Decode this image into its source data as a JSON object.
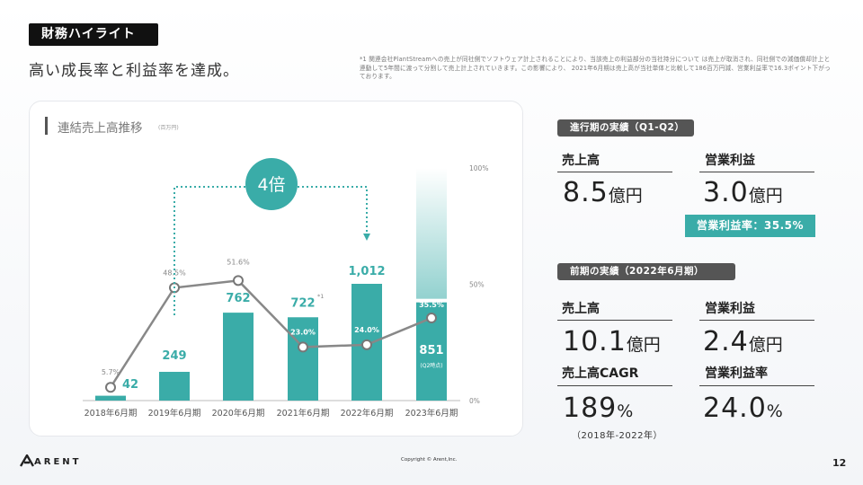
{
  "header": {
    "tag": "財務ハイライト",
    "headline": "高い成長率と利益率を達成。",
    "footnote": "*1 関連会社PlantStreamへの売上が同社側でソフトウェア計上されることにより、当該売上の利益部分の当社持分について は売上が取消され、同社側での減価償却計上と連動して5年間に渡って分割して売上計上されていきます。この影響により、 2021年6月期は売上高が当社単体と比較して186百万円減、営業利益率で16.3ポイント下がっております。"
  },
  "card": {
    "title": "連結売上高推移",
    "unit": "(百万円)"
  },
  "chart_data": {
    "type": "bar",
    "categories": [
      "2018年6月期",
      "2019年6月期",
      "2020年6月期",
      "2021年6月期",
      "2022年6月期",
      "2023年6月期"
    ],
    "series": [
      {
        "type": "bar",
        "values": [
          42,
          249,
          762,
          722,
          1012,
          851
        ],
        "labels": [
          "42",
          "249",
          "762",
          "722",
          "1,012",
          "851"
        ]
      },
      {
        "type": "line",
        "values": [
          5.7,
          48.5,
          51.6,
          23.0,
          24.0,
          35.5
        ],
        "labels": [
          "5.7%",
          "48.5%",
          "51.6%",
          "23.0%",
          "24.0%",
          "35.5%"
        ]
      }
    ],
    "right_axis_ticks": [
      "100%",
      "50%",
      "0%"
    ],
    "right_axis_values": [
      100,
      50,
      0
    ],
    "annotations": {
      "multiplier": "4倍",
      "footnote_mark": "*1",
      "q2_note": "(Q2時点)"
    },
    "colors": {
      "bar": "#3aaca8",
      "line": "#888888",
      "arrow": "#3aaca8"
    }
  },
  "current_period": {
    "title": "進行期の実績（Q1-Q2）",
    "sales_label": "売上高",
    "sales_value": "8.5",
    "sales_unit": "億円",
    "op_label": "営業利益",
    "op_value": "3.0",
    "op_unit": "億円",
    "margin_badge": "営業利益率：35.5%"
  },
  "previous_period": {
    "title": "前期の実績（2022年6月期）",
    "sales_label": "売上高",
    "sales_value": "10.1",
    "sales_unit": "億円",
    "op_label": "営業利益",
    "op_value": "2.4",
    "op_unit": "億円",
    "cagr_label": "売上高CAGR",
    "cagr_value": "189",
    "cagr_unit": "%",
    "cagr_period": "（2018年-2022年）",
    "margin_label": "営業利益率",
    "margin_value": "24.0",
    "margin_unit": "%"
  },
  "footer": {
    "logo": "ARENT",
    "copyright": "Copyright © Arent,Inc.",
    "page": "12"
  }
}
